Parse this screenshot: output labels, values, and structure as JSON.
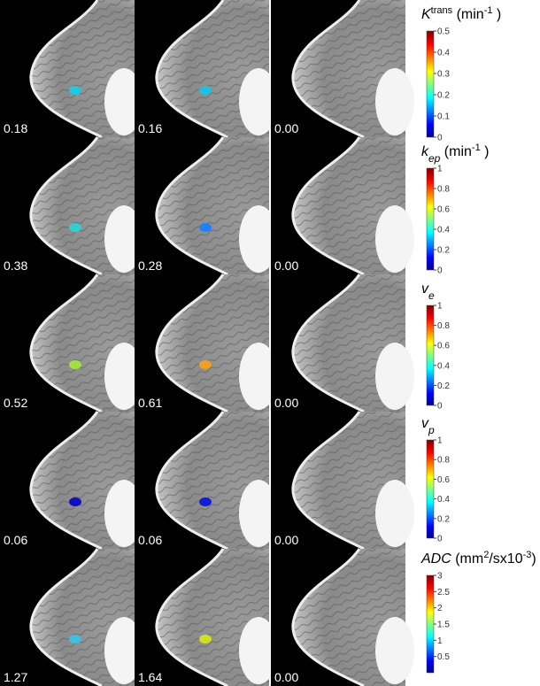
{
  "rows": [
    {
      "values": [
        "0.18",
        "0.16",
        "0.00"
      ],
      "colorbar": {
        "title": [
          {
            "text": "K",
            "style": "italic"
          },
          {
            "text": "trans",
            "style": "sup"
          },
          {
            "text": " (min",
            "style": "normal"
          },
          {
            "text": "-1",
            "style": "sup"
          },
          {
            "text": " )",
            "style": "normal"
          }
        ],
        "lim": [
          0,
          0.5
        ],
        "ticks": [
          0,
          0.1,
          0.2,
          0.3,
          0.4,
          0.5
        ]
      }
    },
    {
      "values": [
        "0.38",
        "0.28",
        "0.00"
      ],
      "colorbar": {
        "title": [
          {
            "text": "k",
            "style": "italic"
          },
          {
            "text": "ep",
            "style": "sub"
          },
          {
            "text": " (min",
            "style": "normal"
          },
          {
            "text": "-1",
            "style": "sup"
          },
          {
            "text": " )",
            "style": "normal"
          }
        ],
        "lim": [
          0,
          1
        ],
        "ticks": [
          0,
          0.2,
          0.4,
          0.6,
          0.8,
          1
        ]
      }
    },
    {
      "values": [
        "0.52",
        "0.61",
        "0.00"
      ],
      "colorbar": {
        "title": [
          {
            "text": "v",
            "style": "italic"
          },
          {
            "text": "e",
            "style": "sub"
          }
        ],
        "lim": [
          0,
          1
        ],
        "ticks": [
          0,
          0.2,
          0.4,
          0.6,
          0.8,
          1
        ]
      }
    },
    {
      "values": [
        "0.06",
        "0.06",
        "0.00"
      ],
      "colorbar": {
        "title": [
          {
            "text": "v",
            "style": "italic"
          },
          {
            "text": "p",
            "style": "sub"
          }
        ],
        "lim": [
          0,
          1
        ],
        "ticks": [
          0,
          0.2,
          0.4,
          0.6,
          0.8,
          1
        ]
      }
    },
    {
      "values": [
        "1.27",
        "1.64",
        "0.00"
      ],
      "colorbar": {
        "title": [
          {
            "text": "ADC",
            "style": "italic"
          },
          {
            "text": " (mm",
            "style": "normal"
          },
          {
            "text": "2",
            "style": "sup"
          },
          {
            "text": "/sx10",
            "style": "normal"
          },
          {
            "text": "-3",
            "style": "sup"
          },
          {
            "text": ")",
            "style": "normal"
          }
        ],
        "lim": [
          0,
          3
        ],
        "ticks": [
          0.5,
          1,
          1.5,
          2,
          2.5,
          3
        ]
      }
    }
  ]
}
